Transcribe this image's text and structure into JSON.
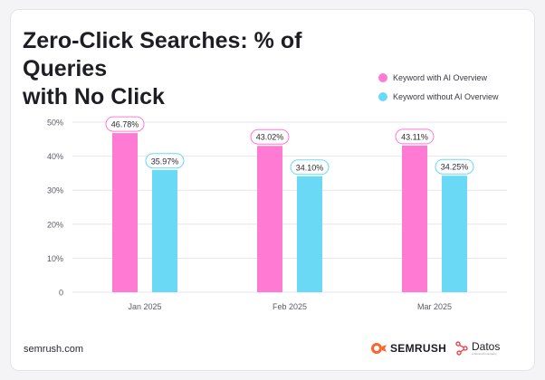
{
  "header": {
    "title_line1": "Zero-Click Searches: % of Queries",
    "title_line2": "with No Click"
  },
  "footer": {
    "source": "semrush.com",
    "semrush_logo_text": "SEMRUSH",
    "datos_logo_text": "Datos",
    "datos_logo_subtext": "a Semrush company"
  },
  "colors": {
    "with_ai": "#ff7ad3",
    "without_ai": "#6ad9f6",
    "grid": "#e6e6ec",
    "axis_text": "#5a5a66",
    "semrush_orange": "#ff642d",
    "datos_red": "#e8484f"
  },
  "chart_data": {
    "type": "bar",
    "title": "Zero-Click Searches: % of Queries with No Click",
    "categories": [
      "Jan 2025",
      "Feb 2025",
      "Mar 2025"
    ],
    "series": [
      {
        "name": "Keyword with AI Overview",
        "values": [
          46.78,
          43.02,
          43.11
        ],
        "labels": [
          "46.78%",
          "43.02%",
          "43.11%"
        ]
      },
      {
        "name": "Keyword without AI Overview",
        "values": [
          35.97,
          34.1,
          34.25
        ],
        "labels": [
          "35.97%",
          "34.10%",
          "34.25%"
        ]
      }
    ],
    "yticks": [
      "0",
      "10%",
      "20%",
      "30%",
      "40%",
      "50%"
    ],
    "ylim": [
      0,
      50
    ],
    "grid": true,
    "legend_position": "top-right",
    "xlabel": "",
    "ylabel": ""
  }
}
